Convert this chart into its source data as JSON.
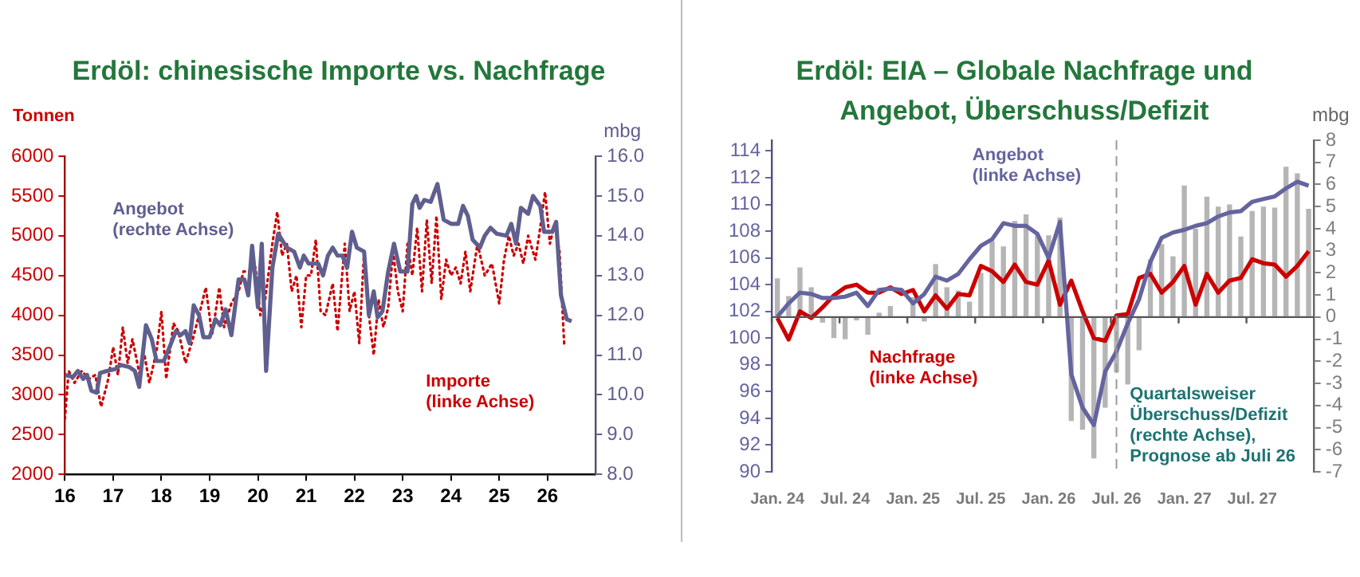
{
  "chart_data": [
    {
      "type": "line",
      "title": "Erdöl: chinesische Importe vs. Nachfrage",
      "ylabel": "Tonnen",
      "y2label": "mbg",
      "xlim": [
        16,
        27
      ],
      "xticks": [
        16,
        17,
        18,
        19,
        20,
        21,
        22,
        23,
        24,
        25,
        26
      ],
      "ylim": [
        2000,
        6000
      ],
      "yticks": [
        2000,
        2500,
        3000,
        3500,
        4000,
        4500,
        5000,
        5500,
        6000
      ],
      "y2lim": [
        8,
        16
      ],
      "y2ticks": [
        {
          "value": 8,
          "label": "8.0"
        },
        {
          "value": 9,
          "label": "9.0"
        },
        {
          "value": 10,
          "label": "10.0"
        },
        {
          "value": 11,
          "label": "11.0"
        },
        {
          "value": 12,
          "label": "12.0"
        },
        {
          "value": 13,
          "label": "13.0"
        },
        {
          "value": 14,
          "label": "14.0"
        },
        {
          "value": 15,
          "label": "15.0"
        },
        {
          "value": 16,
          "label": "16.0"
        }
      ],
      "series": [
        {
          "name": "Angebot (rechte Achse)",
          "color": "#5f5f8f",
          "axis": "y2",
          "x": [
            16.0,
            16.17,
            16.27,
            16.38,
            16.46,
            16.55,
            16.66,
            16.73,
            16.87,
            17.05,
            17.16,
            17.33,
            17.45,
            17.54,
            17.68,
            17.8,
            17.9,
            18.05,
            18.17,
            18.3,
            18.4,
            18.5,
            18.58,
            18.67,
            18.78,
            18.87,
            19.0,
            19.12,
            19.22,
            19.33,
            19.45,
            19.6,
            19.72,
            19.8,
            19.88,
            20.0,
            20.08,
            20.17,
            20.3,
            20.42,
            20.6,
            20.75,
            20.87,
            20.95,
            21.05,
            21.25,
            21.35,
            21.45,
            21.55,
            21.65,
            21.75,
            21.85,
            21.95,
            22.05,
            22.2,
            22.3,
            22.4,
            22.48,
            22.58,
            22.7,
            22.82,
            22.95,
            23.1,
            23.2,
            23.28,
            23.35,
            23.45,
            23.58,
            23.72,
            23.85,
            24.0,
            24.15,
            24.25,
            24.35,
            24.45,
            24.6,
            24.7,
            24.82,
            24.95,
            25.15,
            25.25,
            25.35,
            25.45,
            25.6,
            25.7,
            25.85,
            25.93,
            26.1,
            26.18,
            26.28,
            26.4,
            26.5
          ],
          "values": [
            10.5,
            10.45,
            10.6,
            10.4,
            10.5,
            10.1,
            10.05,
            10.55,
            10.6,
            10.65,
            10.75,
            10.7,
            10.6,
            10.2,
            11.75,
            11.4,
            10.85,
            10.85,
            11.2,
            11.6,
            11.5,
            11.6,
            11.3,
            12.25,
            12.0,
            11.45,
            11.45,
            11.9,
            11.75,
            12.15,
            11.5,
            12.9,
            12.9,
            12.5,
            13.75,
            12.2,
            13.8,
            10.6,
            13.2,
            14.05,
            13.7,
            13.6,
            13.2,
            13.5,
            13.3,
            13.3,
            13.0,
            13.5,
            13.7,
            13.5,
            13.5,
            13.2,
            14.1,
            13.7,
            13.6,
            12.0,
            12.6,
            11.95,
            12.1,
            13.1,
            13.8,
            13.1,
            13.1,
            14.8,
            15.0,
            14.7,
            14.9,
            14.85,
            15.3,
            14.4,
            14.3,
            14.3,
            14.75,
            14.5,
            13.9,
            13.7,
            14.0,
            14.2,
            14.05,
            14.0,
            14.3,
            13.8,
            14.7,
            14.55,
            15.0,
            14.75,
            14.1,
            14.1,
            14.35,
            12.5,
            11.9,
            11.85
          ]
        },
        {
          "name": "Importe (linke Achse)",
          "color": "#cc0000",
          "line_style": "dotted",
          "x": [
            16.0,
            16.08,
            16.2,
            16.35,
            16.5,
            16.63,
            16.75,
            16.9,
            17.0,
            17.1,
            17.2,
            17.3,
            17.4,
            17.55,
            17.65,
            17.75,
            17.9,
            18.0,
            18.1,
            18.25,
            18.35,
            18.5,
            18.65,
            18.8,
            18.92,
            19.05,
            19.2,
            19.3,
            19.45,
            19.6,
            19.7,
            19.85,
            19.95,
            20.05,
            20.15,
            20.3,
            20.4,
            20.5,
            20.6,
            20.7,
            20.8,
            20.9,
            21.0,
            21.1,
            21.2,
            21.3,
            21.4,
            21.55,
            21.65,
            21.8,
            21.9,
            22.0,
            22.1,
            22.2,
            22.3,
            22.4,
            22.5,
            22.6,
            22.7,
            22.8,
            22.9,
            23.0,
            23.1,
            23.2,
            23.3,
            23.4,
            23.5,
            23.6,
            23.7,
            23.8,
            23.9,
            24.0,
            24.1,
            24.2,
            24.3,
            24.4,
            24.55,
            24.7,
            24.85,
            25.0,
            25.1,
            25.2,
            25.3,
            25.4,
            25.5,
            25.6,
            25.75,
            25.85,
            25.95,
            26.05,
            26.15,
            26.25,
            26.35
          ],
          "values": [
            2700,
            3300,
            3150,
            3300,
            3200,
            3250,
            2850,
            3200,
            3600,
            3250,
            3850,
            3400,
            3700,
            3250,
            3500,
            3150,
            3550,
            4050,
            3200,
            3900,
            3800,
            3400,
            3700,
            4050,
            4350,
            3750,
            4350,
            3850,
            4150,
            4300,
            4550,
            4550,
            4600,
            4000,
            4200,
            4900,
            5300,
            4750,
            4900,
            4300,
            4500,
            3850,
            4500,
            4500,
            4950,
            4050,
            4000,
            4400,
            3800,
            4900,
            4050,
            4300,
            3650,
            4800,
            4000,
            3500,
            4200,
            3850,
            4100,
            4800,
            4300,
            4050,
            4900,
            4500,
            5100,
            4300,
            5200,
            4400,
            5250,
            4200,
            4700,
            4500,
            4600,
            4400,
            4800,
            4300,
            4900,
            4500,
            4650,
            4150,
            4700,
            5000,
            4750,
            4900,
            4650,
            5000,
            4700,
            5100,
            5550,
            4900,
            5150,
            4800,
            3600
          ]
        }
      ]
    },
    {
      "type": "bar",
      "title": "Erdöl: EIA – Globale Nachfrage und Angebot, Überschuss/Defizit",
      "y2label": "mbg",
      "categories": [
        "Jan. 24",
        null,
        null,
        null,
        null,
        null,
        "Jul. 24",
        null,
        null,
        null,
        null,
        null,
        "Jan. 25",
        null,
        null,
        null,
        null,
        null,
        "Jul. 25",
        null,
        null,
        null,
        null,
        null,
        "Jan. 26",
        null,
        null,
        null,
        null,
        null,
        "Jul. 26",
        null,
        null,
        null,
        null,
        null,
        "Jan. 27",
        null,
        null,
        null,
        null,
        null,
        "Jul. 27",
        null,
        null,
        null,
        null,
        null
      ],
      "ylim": [
        90,
        114.8
      ],
      "yticks": [
        90,
        92,
        94,
        96,
        98,
        100,
        102,
        104,
        106,
        108,
        110,
        112,
        114
      ],
      "y2lim": [
        -7,
        8
      ],
      "y2ticks": [
        -7,
        -6,
        -5,
        -4,
        -3,
        -2,
        -1,
        0,
        1,
        2,
        3,
        4,
        5,
        6,
        7,
        8
      ],
      "ref_lines": [
        {
          "axis": "x",
          "value": "Jul. 26",
          "color": "#9a9a9a",
          "line_style": "dashed"
        }
      ],
      "series": [
        {
          "name": "Quartalsweiser Überschuss/Defizit (rechte Achse), Prognose ab Juli 26",
          "type": "bar",
          "axis": "y2",
          "color": "#b5b5b5",
          "values": [
            1.75,
            0.95,
            2.25,
            1.35,
            -0.25,
            -0.95,
            -1.0,
            -0.15,
            -0.8,
            0.2,
            0.5,
            null,
            0.9,
            -0.2,
            2.4,
            1.35,
            1.2,
            0.7,
            2.0,
            3.45,
            3.2,
            4.35,
            4.65,
            3.7,
            3.7,
            4.5,
            -4.7,
            -5.1,
            -6.4,
            -4.1,
            -2.5,
            -3.05,
            -1.5,
            2.6,
            3.3,
            2.75,
            5.95,
            4.0,
            5.45,
            5.0,
            5.1,
            3.65,
            4.8,
            5.0,
            4.95,
            6.8,
            6.5,
            4.9
          ]
        },
        {
          "name": "Angebot (linke Achse)",
          "type": "line",
          "color": "#6464a0",
          "values": [
            101.6,
            102.6,
            103.4,
            103.3,
            103.0,
            103.0,
            103.1,
            103.4,
            102.4,
            103.6,
            103.7,
            103.6,
            102.6,
            103.3,
            104.6,
            104.3,
            104.8,
            105.9,
            106.9,
            107.4,
            108.6,
            108.4,
            108.4,
            107.8,
            106.0,
            108.7,
            97.3,
            94.8,
            93.5,
            97.5,
            99.0,
            101.1,
            102.9,
            105.7,
            107.5,
            107.9,
            108.1,
            108.4,
            108.6,
            109.1,
            109.4,
            109.5,
            110.2,
            110.4,
            110.6,
            111.2,
            111.7,
            111.4
          ]
        },
        {
          "name": "Nachfrage (linke Achse)",
          "type": "line",
          "color": "#cc0000",
          "values": [
            101.5,
            99.9,
            102.0,
            101.5,
            102.3,
            103.2,
            103.8,
            104.0,
            103.4,
            103.4,
            103.8,
            103.3,
            103.6,
            102.0,
            103.2,
            102.2,
            103.3,
            103.2,
            105.4,
            105.0,
            104.2,
            105.5,
            104.2,
            104.0,
            105.8,
            102.5,
            104.3,
            102.0,
            100.0,
            99.8,
            101.7,
            101.8,
            104.5,
            104.8,
            103.4,
            104.2,
            105.4,
            102.5,
            104.8,
            103.4,
            104.3,
            104.5,
            105.9,
            105.6,
            105.5,
            104.6,
            105.4,
            106.5
          ]
        }
      ]
    }
  ]
}
